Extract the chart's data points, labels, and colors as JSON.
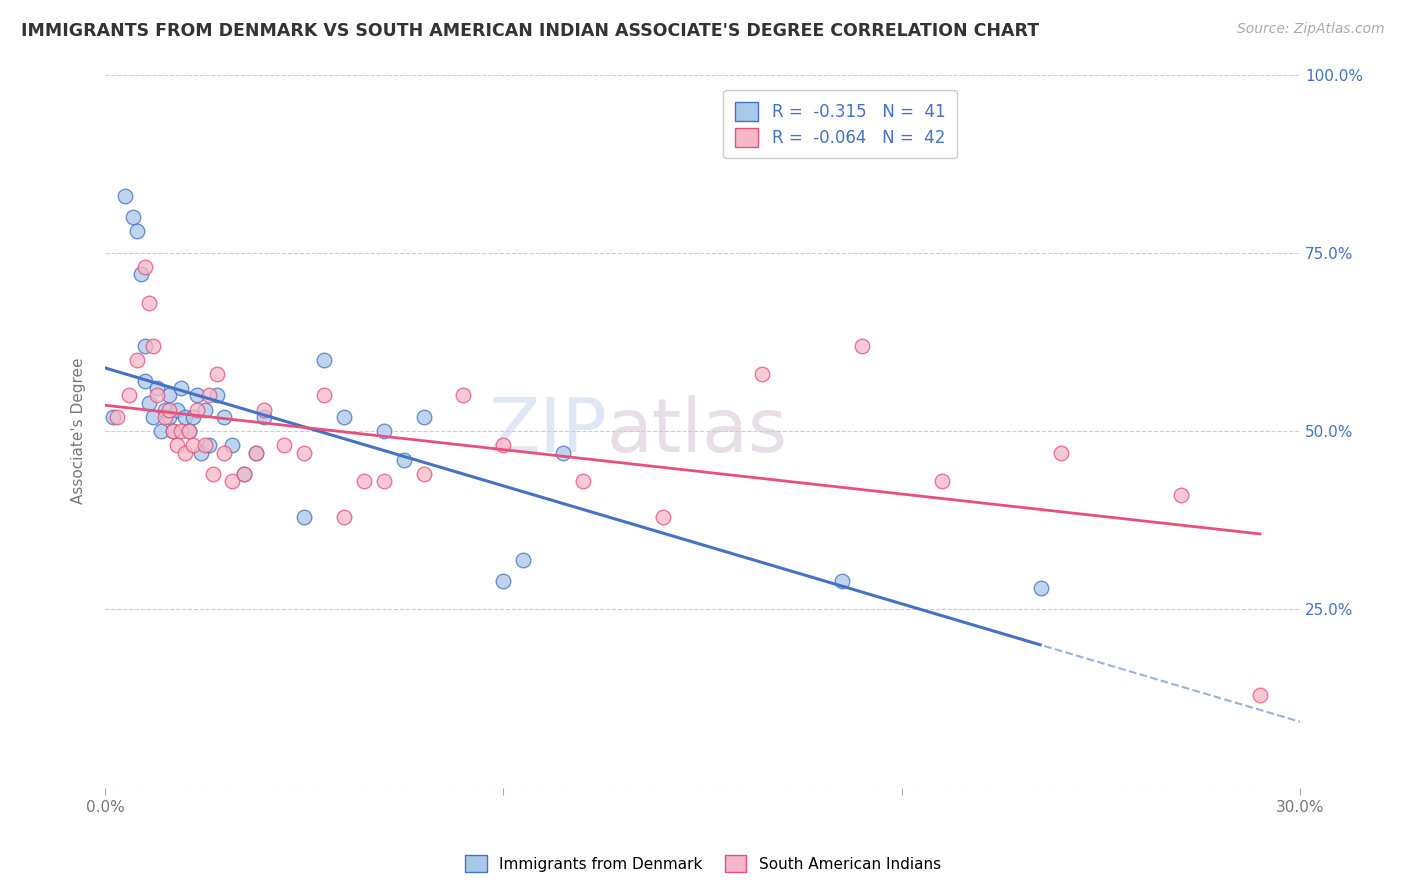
{
  "title": "IMMIGRANTS FROM DENMARK VS SOUTH AMERICAN INDIAN ASSOCIATE'S DEGREE CORRELATION CHART",
  "source_text": "Source: ZipAtlas.com",
  "ylabel": "Associate's Degree",
  "xlim": [
    0.0,
    0.3
  ],
  "ylim": [
    0.0,
    1.0
  ],
  "ytick_vals": [
    0.0,
    0.25,
    0.5,
    0.75,
    1.0
  ],
  "ytick_labels_left": [
    "",
    "",
    "",
    "",
    ""
  ],
  "ytick_labels_right": [
    "",
    "25.0%",
    "50.0%",
    "75.0%",
    "100.0%"
  ],
  "xtick_vals": [
    0.0,
    0.1,
    0.2,
    0.3
  ],
  "xtick_labels": [
    "0.0%",
    "",
    "",
    "30.0%"
  ],
  "legend_r1": "R =  -0.315   N =  41",
  "legend_r2": "R =  -0.064   N =  42",
  "color_denmark": "#a8c8e8",
  "color_sa_indian": "#f4b8c8",
  "line_color_denmark": "#4472c4",
  "line_color_sa_indian": "#e8507a",
  "watermark_part1": "ZIP",
  "watermark_part2": "atlas",
  "denmark_x": [
    0.002,
    0.005,
    0.007,
    0.008,
    0.009,
    0.01,
    0.01,
    0.011,
    0.012,
    0.013,
    0.014,
    0.015,
    0.016,
    0.016,
    0.017,
    0.018,
    0.019,
    0.02,
    0.021,
    0.022,
    0.023,
    0.024,
    0.025,
    0.026,
    0.028,
    0.03,
    0.032,
    0.035,
    0.038,
    0.04,
    0.05,
    0.055,
    0.06,
    0.07,
    0.075,
    0.08,
    0.1,
    0.105,
    0.115,
    0.185,
    0.235
  ],
  "denmark_y": [
    0.52,
    0.83,
    0.8,
    0.78,
    0.72,
    0.62,
    0.57,
    0.54,
    0.52,
    0.56,
    0.5,
    0.53,
    0.52,
    0.55,
    0.5,
    0.53,
    0.56,
    0.52,
    0.5,
    0.52,
    0.55,
    0.47,
    0.53,
    0.48,
    0.55,
    0.52,
    0.48,
    0.44,
    0.47,
    0.52,
    0.38,
    0.6,
    0.52,
    0.5,
    0.46,
    0.52,
    0.29,
    0.32,
    0.47,
    0.29,
    0.28
  ],
  "sa_indian_x": [
    0.003,
    0.006,
    0.008,
    0.01,
    0.011,
    0.012,
    0.013,
    0.015,
    0.016,
    0.017,
    0.018,
    0.019,
    0.02,
    0.021,
    0.022,
    0.023,
    0.025,
    0.026,
    0.027,
    0.028,
    0.03,
    0.032,
    0.035,
    0.038,
    0.04,
    0.045,
    0.05,
    0.055,
    0.06,
    0.065,
    0.07,
    0.08,
    0.09,
    0.1,
    0.12,
    0.14,
    0.165,
    0.19,
    0.21,
    0.24,
    0.27,
    0.29
  ],
  "sa_indian_y": [
    0.52,
    0.55,
    0.6,
    0.73,
    0.68,
    0.62,
    0.55,
    0.52,
    0.53,
    0.5,
    0.48,
    0.5,
    0.47,
    0.5,
    0.48,
    0.53,
    0.48,
    0.55,
    0.44,
    0.58,
    0.47,
    0.43,
    0.44,
    0.47,
    0.53,
    0.48,
    0.47,
    0.55,
    0.38,
    0.43,
    0.43,
    0.44,
    0.55,
    0.48,
    0.43,
    0.38,
    0.58,
    0.62,
    0.43,
    0.47,
    0.41,
    0.13
  ]
}
